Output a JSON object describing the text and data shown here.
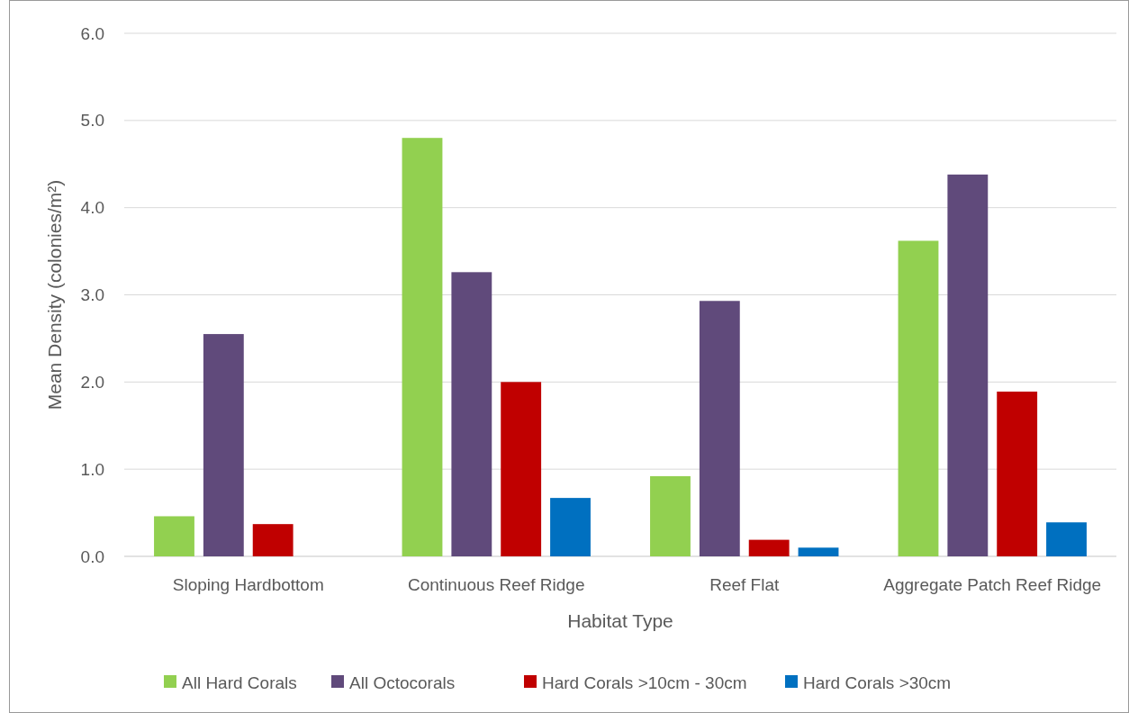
{
  "chart_data": {
    "type": "bar",
    "xlabel": "Habitat Type",
    "ylabel": "Mean Density (colonies/m²)",
    "categories": [
      "Sloping Hardbottom",
      "Continuous Reef Ridge",
      "Reef Flat",
      "Aggregate Patch Reef Ridge"
    ],
    "series": [
      {
        "name": "All Hard Corals",
        "color": "#92d050",
        "values": [
          0.46,
          4.8,
          0.92,
          3.62
        ]
      },
      {
        "name": "All Octocorals",
        "color": "#604a7b",
        "values": [
          2.55,
          3.26,
          2.93,
          4.38
        ]
      },
      {
        "name": "Hard Corals >10cm - 30cm",
        "color": "#c00000",
        "values": [
          0.37,
          2.0,
          0.19,
          1.89
        ]
      },
      {
        "name": "Hard Corals >30cm",
        "color": "#0070c0",
        "values": [
          null,
          0.67,
          0.1,
          0.39
        ]
      }
    ],
    "ylim": [
      0,
      6
    ],
    "yticks": [
      {
        "value": 0,
        "label": "0.0"
      },
      {
        "value": 1,
        "label": "1.0"
      },
      {
        "value": 2,
        "label": "2.0"
      },
      {
        "value": 3,
        "label": "3.0"
      },
      {
        "value": 4,
        "label": "4.0"
      },
      {
        "value": 5,
        "label": "5.0"
      },
      {
        "value": 6,
        "label": "6.0"
      }
    ],
    "grid": "y",
    "legend": "bottom"
  }
}
